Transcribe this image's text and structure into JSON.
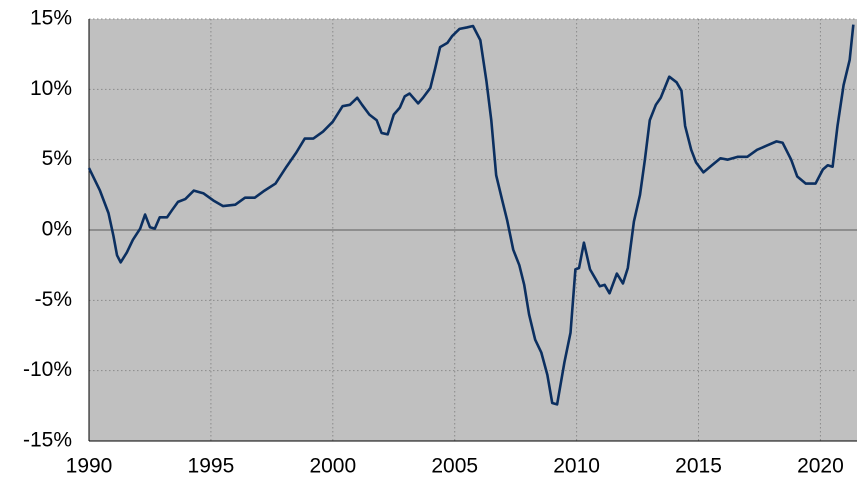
{
  "chart_data": {
    "type": "line",
    "x": [
      1990.0,
      1990.45,
      1990.8,
      1991.0,
      1991.15,
      1991.3,
      1991.55,
      1991.8,
      1992.1,
      1992.3,
      1992.5,
      1992.7,
      1992.9,
      1993.2,
      1993.4,
      1993.65,
      1993.95,
      1994.3,
      1994.7,
      1995.1,
      1995.5,
      1996.0,
      1996.4,
      1996.8,
      1997.2,
      1997.65,
      1998.1,
      1998.5,
      1998.85,
      1999.2,
      1999.6,
      2000.0,
      2000.4,
      2000.7,
      2001.0,
      2001.2,
      2001.5,
      2001.8,
      2002.0,
      2002.25,
      2002.5,
      2002.75,
      2002.95,
      2003.15,
      2003.5,
      2003.7,
      2004.0,
      2004.2,
      2004.4,
      2004.7,
      2004.9,
      2005.2,
      2005.5,
      2005.75,
      2006.05,
      2006.3,
      2006.5,
      2006.7,
      2006.95,
      2007.15,
      2007.4,
      2007.65,
      2007.85,
      2008.05,
      2008.3,
      2008.55,
      2008.8,
      2009.0,
      2009.2,
      2009.5,
      2009.75,
      2009.95,
      2010.1,
      2010.3,
      2010.55,
      2010.75,
      2010.95,
      2011.15,
      2011.35,
      2011.65,
      2011.9,
      2012.1,
      2012.35,
      2012.6,
      2012.8,
      2013.0,
      2013.25,
      2013.45,
      2013.8,
      2014.1,
      2014.3,
      2014.45,
      2014.7,
      2014.9,
      2015.2,
      2015.55,
      2015.9,
      2016.2,
      2016.6,
      2017.0,
      2017.4,
      2017.8,
      2018.2,
      2018.45,
      2018.8,
      2019.05,
      2019.4,
      2019.8,
      2020.1,
      2020.3,
      2020.5,
      2020.7,
      2020.95,
      2021.2,
      2021.35
    ],
    "values": [
      4.4,
      2.8,
      1.2,
      -0.4,
      -1.8,
      -2.3,
      -1.6,
      -0.7,
      0.1,
      1.1,
      0.2,
      0.1,
      0.9,
      0.9,
      1.4,
      2.0,
      2.2,
      2.8,
      2.6,
      2.1,
      1.7,
      1.8,
      2.3,
      2.3,
      2.8,
      3.3,
      4.5,
      5.5,
      6.5,
      6.5,
      7.0,
      7.7,
      8.8,
      8.9,
      9.4,
      8.9,
      8.2,
      7.8,
      6.9,
      6.8,
      8.2,
      8.7,
      9.5,
      9.7,
      9.0,
      9.4,
      10.1,
      11.5,
      13.0,
      13.3,
      13.8,
      14.3,
      14.4,
      14.5,
      13.5,
      10.6,
      7.8,
      3.9,
      2.1,
      0.7,
      -1.4,
      -2.5,
      -3.9,
      -6.0,
      -7.8,
      -8.7,
      -10.3,
      -12.3,
      -12.4,
      -9.4,
      -7.3,
      -2.8,
      -2.7,
      -0.9,
      -2.8,
      -3.4,
      -4.0,
      -3.9,
      -4.5,
      -3.1,
      -3.8,
      -2.7,
      0.6,
      2.5,
      5.0,
      7.8,
      8.9,
      9.4,
      10.9,
      10.5,
      9.9,
      7.4,
      5.7,
      4.8,
      4.1,
      4.6,
      5.1,
      5.0,
      5.2,
      5.2,
      5.7,
      6.0,
      6.3,
      6.2,
      5.0,
      3.8,
      3.3,
      3.3,
      4.3,
      4.6,
      4.5,
      7.4,
      10.3,
      12.1,
      14.6
    ],
    "color": "#0b2f60",
    "xlim": [
      1990,
      2021.5
    ],
    "xticks": [
      1990,
      1995,
      2000,
      2005,
      2010,
      2015,
      2020
    ],
    "ylim": [
      -15,
      15
    ],
    "yticks": [
      {
        "value": -15,
        "label": "-15%"
      },
      {
        "value": -10,
        "label": "-10%"
      },
      {
        "value": -5,
        "label": "-5%"
      },
      {
        "value": 0,
        "label": "0%"
      },
      {
        "value": 5,
        "label": "5%"
      },
      {
        "value": 10,
        "label": "10%"
      },
      {
        "value": 15,
        "label": "15%"
      }
    ],
    "grid": true
  }
}
